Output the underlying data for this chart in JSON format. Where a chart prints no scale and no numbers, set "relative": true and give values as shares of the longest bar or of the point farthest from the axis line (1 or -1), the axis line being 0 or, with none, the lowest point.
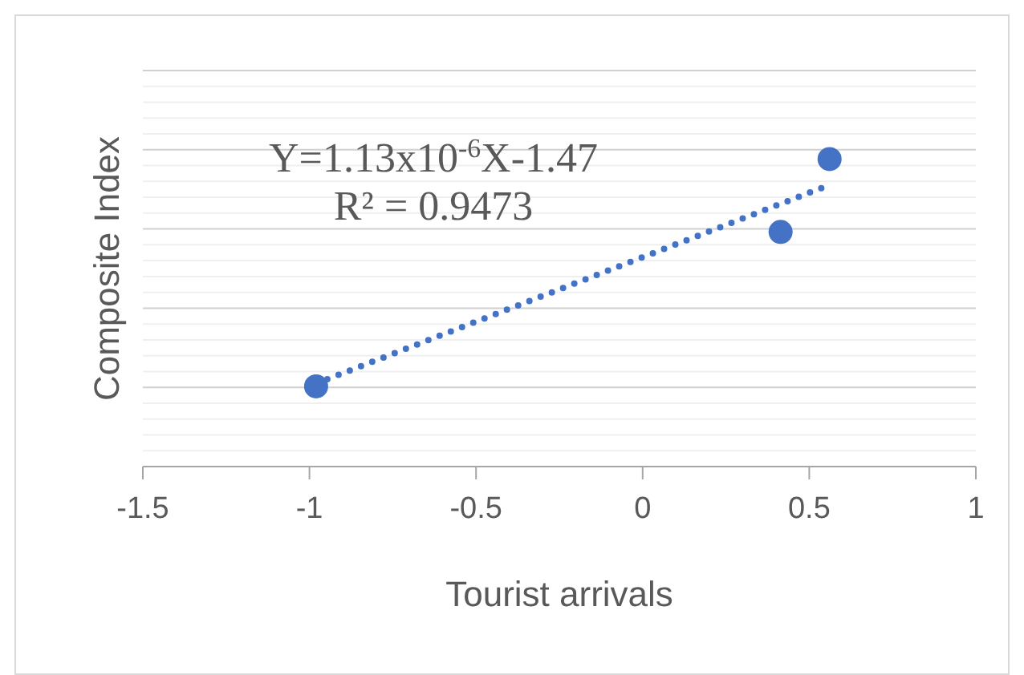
{
  "chart_data": {
    "type": "scatter",
    "xlabel": "Tourist arrivals",
    "ylabel": "Composite Index",
    "relative": true,
    "grid": "y",
    "xlim": [
      -1.5,
      1
    ],
    "xticks": [
      -1.5,
      -1,
      -0.5,
      0,
      0.5,
      1
    ],
    "annotations": [
      "Y=1.13x10$^{-6}$X-1.47",
      "R² = 0.9473"
    ],
    "series": [
      {
        "color": "#4472c4",
        "marker": "circle",
        "x": [
          -0.98,
          0.414,
          0.561
        ],
        "values": [
          0.261,
          0.763,
          1
        ]
      },
      {
        "type": "line",
        "color": "#4472c4",
        "line_style": "dotted",
        "marker": "none",
        "x": [
          -0.98,
          0.561
        ],
        "values": [
          0.27,
          0.916
        ]
      }
    ]
  }
}
